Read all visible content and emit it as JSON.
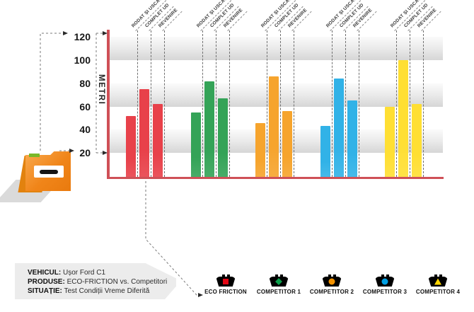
{
  "chart_data": {
    "type": "bar",
    "title": "",
    "ylabel": "METRI",
    "yticks": [
      120,
      100,
      80,
      60,
      40,
      20
    ],
    "ylim": [
      0,
      120
    ],
    "grid_bands_meters": [
      [
        20,
        40
      ],
      [
        60,
        80
      ],
      [
        100,
        120
      ]
    ],
    "categories": [
      "RODAT ȘI USCAT",
      "COMPLET UD",
      "REVENIRE"
    ],
    "series": [
      {
        "name": "ECO FRICTION",
        "color": "#e8414a",
        "marker": "square",
        "marker_color": "#e30613",
        "values": [
          52,
          75,
          62
        ]
      },
      {
        "name": "COMPETITOR 1",
        "color": "#34a357",
        "marker": "diamond",
        "marker_color": "#0a9e4a",
        "values": [
          55,
          82,
          67
        ]
      },
      {
        "name": "COMPETITOR 2",
        "color": "#f6a42d",
        "marker": "circle",
        "marker_color": "#f39200",
        "values": [
          46,
          86,
          56
        ]
      },
      {
        "name": "COMPETITOR 3",
        "color": "#31b2e7",
        "marker": "circle",
        "marker_color": "#009fe3",
        "values": [
          43,
          84,
          65
        ]
      },
      {
        "name": "COMPETITOR 4",
        "color": "#ffdf33",
        "marker": "triangle",
        "marker_color": "#ffd500",
        "values": [
          60,
          100,
          62
        ]
      }
    ],
    "legend_position": "bottom-right",
    "axis_color": "#cf5057"
  },
  "info_box": {
    "rows": [
      {
        "label": "VEHICUL:",
        "value": " Ușor Ford C1"
      },
      {
        "label": "PRODUSE:",
        "value": " ECO-FRICTION vs. Competitori"
      },
      {
        "label": "SITUAȚIE:",
        "value": " Test Condiții Vreme Diferită"
      }
    ]
  },
  "icons": {
    "folder": "orange-folder-with-minus-label",
    "legend_vehicle": "car-top-silhouette"
  }
}
